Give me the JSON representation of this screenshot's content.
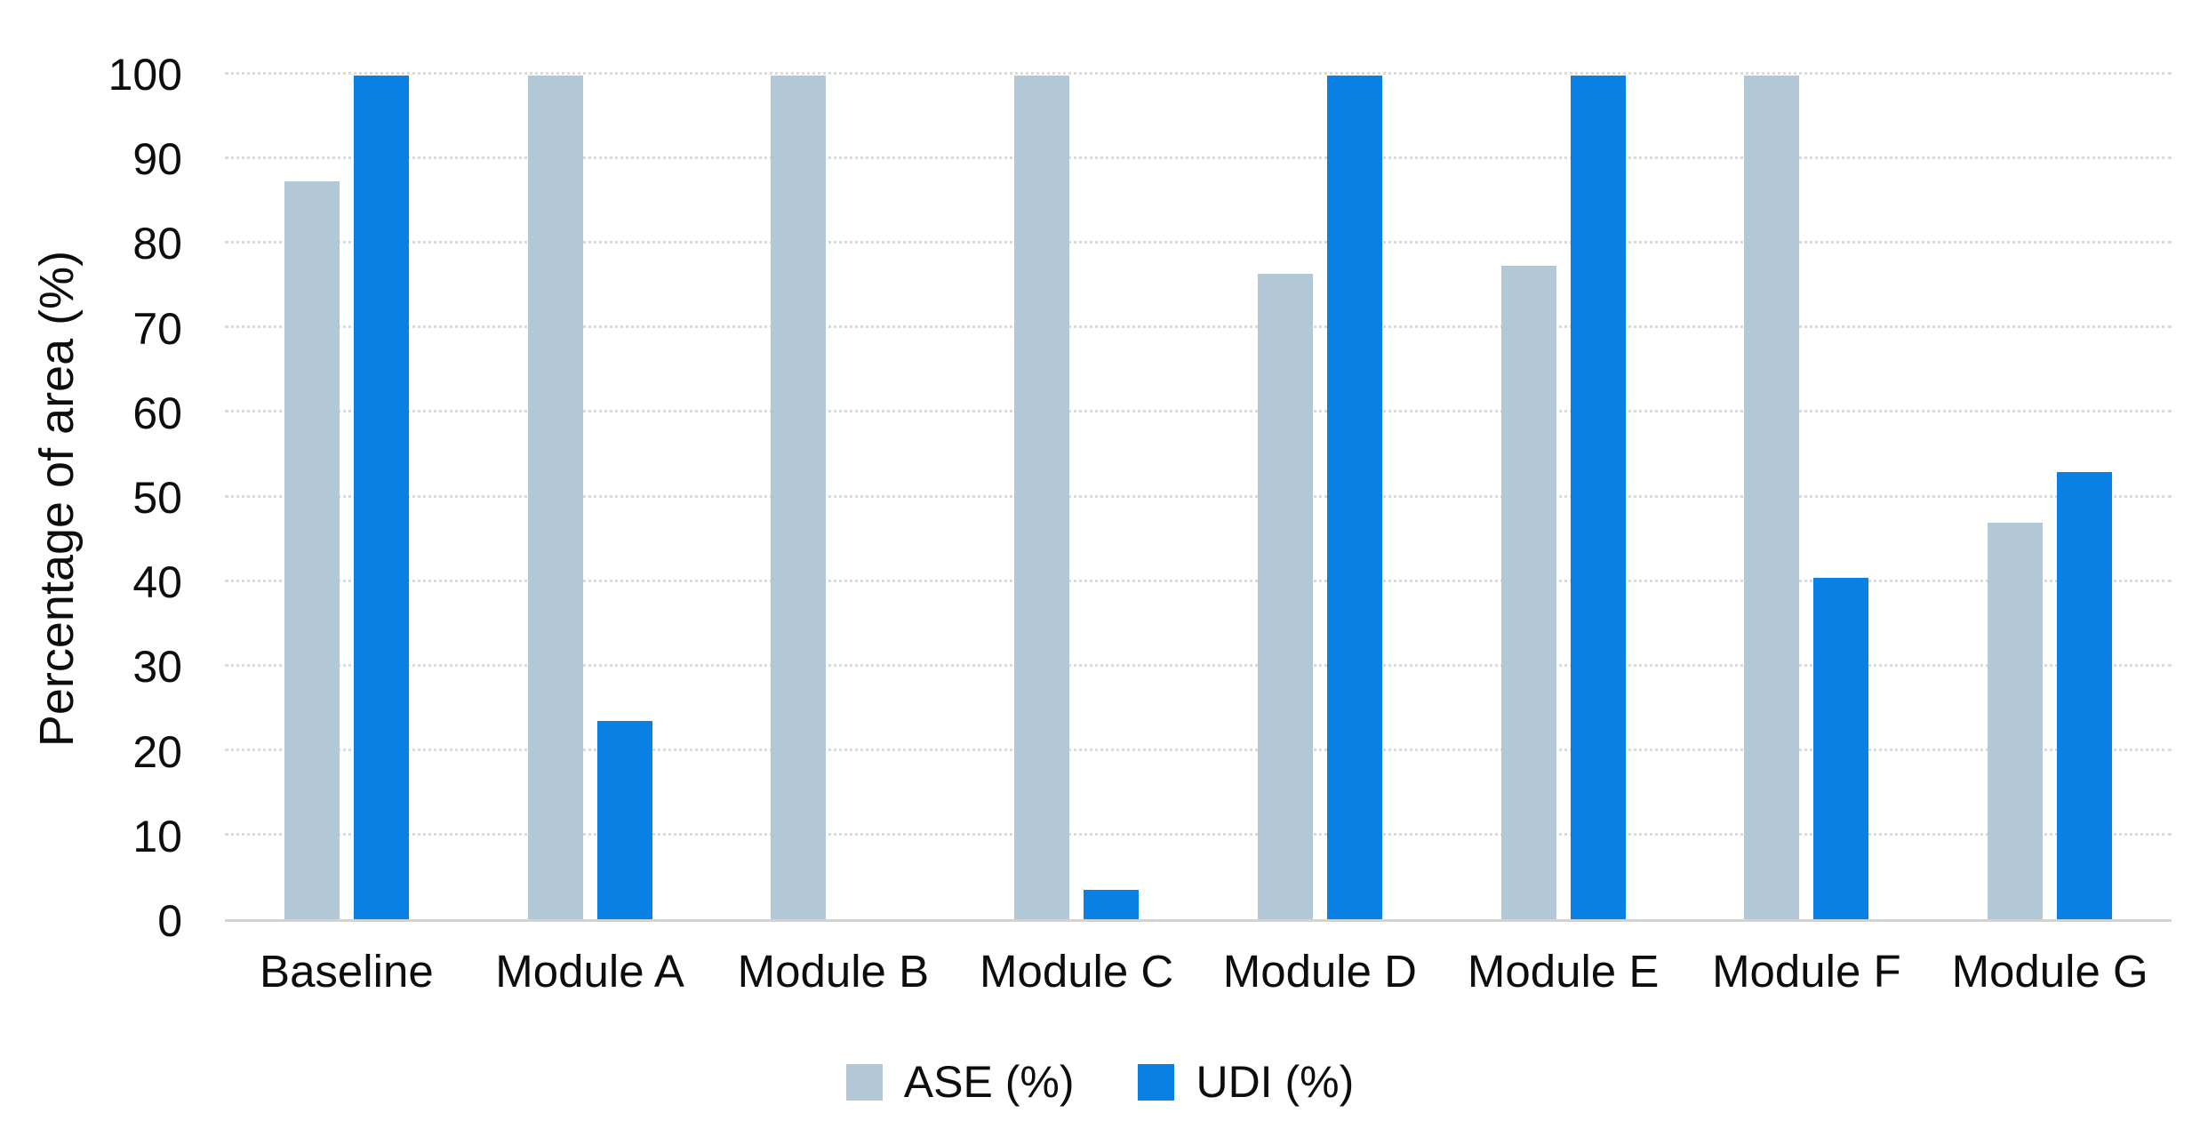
{
  "chart_data": {
    "type": "bar",
    "categories": [
      "Baseline",
      "Module A",
      "Module B",
      "Module C",
      "Module D",
      "Module E",
      "Module F",
      "Module G"
    ],
    "series": [
      {
        "name": "ASE (%)",
        "color": "#B2C8D6",
        "values": [
          87.5,
          100,
          100,
          100,
          76.5,
          77.5,
          100,
          47
        ]
      },
      {
        "name": "UDI (%)",
        "color": "#0880E4",
        "values": [
          100,
          23.5,
          0,
          3.5,
          100,
          100,
          40.5,
          53
        ]
      }
    ],
    "title": "",
    "xlabel": "",
    "ylabel": "Percentage of area (%)",
    "ylim": [
      0,
      100
    ],
    "yticks": [
      0,
      10,
      20,
      30,
      40,
      50,
      60,
      70,
      80,
      90,
      100
    ],
    "grid": "horizontal-dotted",
    "legend_position": "bottom-center",
    "colors": {
      "gridline": "#DADADA",
      "axis_line": "#D2D2D2",
      "text": "#0D0D0D",
      "background": "#FFFFFF"
    }
  }
}
